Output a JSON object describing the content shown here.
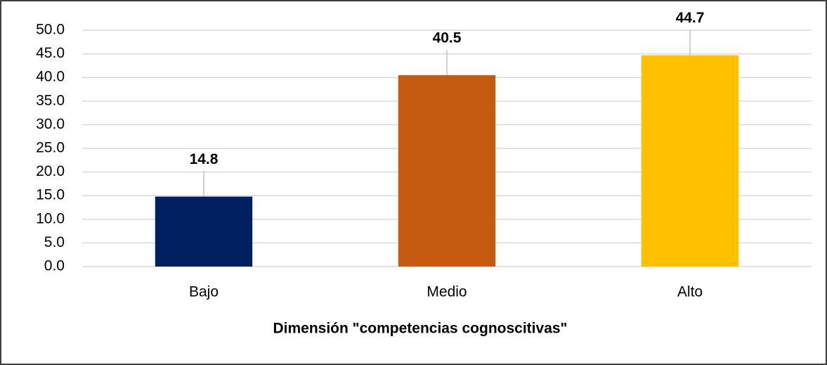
{
  "chart_data": {
    "type": "bar",
    "xlabel": "Dimensión \"competencias cognoscitivas\"",
    "categories": [
      "Bajo",
      "Medio",
      "Alto"
    ],
    "values": [
      14.8,
      40.5,
      44.7
    ],
    "colors": [
      "#002060",
      "#c55a11",
      "#ffc000"
    ],
    "ylim": [
      0,
      50
    ],
    "yticks": [
      {
        "value": 0,
        "label": "0.0"
      },
      {
        "value": 5,
        "label": "5.0"
      },
      {
        "value": 10,
        "label": "10.0"
      },
      {
        "value": 15,
        "label": "15.0"
      },
      {
        "value": 20,
        "label": "20.0"
      },
      {
        "value": 25,
        "label": "25.0"
      },
      {
        "value": 30,
        "label": "30.0"
      },
      {
        "value": 35,
        "label": "35.0"
      },
      {
        "value": 40,
        "label": "40.0"
      },
      {
        "value": 45,
        "label": "45.0"
      },
      {
        "value": 50,
        "label": "50.0"
      }
    ],
    "grid": true
  }
}
